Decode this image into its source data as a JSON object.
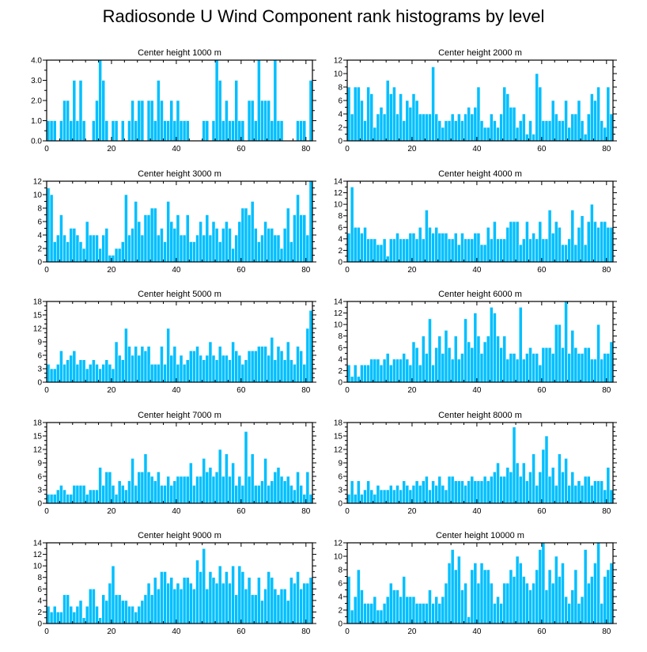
{
  "title": "Radiosonde U Wind Component rank histograms by level",
  "bar_color": "#00bfff",
  "bar_edge_color": "#ffffff",
  "chart_data": [
    {
      "type": "bar",
      "title": "Center height 1000 m",
      "xlim": [
        0,
        82
      ],
      "xticks": [
        0,
        20,
        40,
        60,
        80
      ],
      "ylim": [
        0,
        4
      ],
      "yticks": [
        0,
        1,
        2,
        3,
        4
      ],
      "yticklabels": [
        "0.0",
        "1.0",
        "2.0",
        "3.0",
        "4.0"
      ],
      "values": [
        1,
        1,
        1,
        0,
        1,
        2,
        2,
        1,
        3,
        1,
        3,
        1,
        0,
        0,
        1,
        2,
        4,
        3,
        1,
        0,
        1,
        1,
        0,
        1,
        0,
        1,
        2,
        1,
        2,
        2,
        0,
        2,
        2,
        1,
        3,
        2,
        1,
        1,
        2,
        1,
        2,
        1,
        1,
        1,
        0,
        0,
        0,
        0,
        1,
        1,
        0,
        1,
        4,
        3,
        1,
        2,
        1,
        1,
        3,
        1,
        1,
        0,
        2,
        2,
        1,
        4,
        2,
        2,
        2,
        1,
        4,
        1,
        1,
        0,
        0,
        0,
        0,
        1,
        1,
        1,
        0,
        3
      ]
    },
    {
      "type": "bar",
      "title": "Center height 2000 m",
      "xlim": [
        0,
        82
      ],
      "xticks": [
        0,
        20,
        40,
        60,
        80
      ],
      "ylim": [
        0,
        12
      ],
      "yticks": [
        0,
        2,
        4,
        6,
        8,
        10,
        12
      ],
      "yticklabels": [
        "0",
        "2",
        "4",
        "6",
        "8",
        "10",
        "12"
      ],
      "values": [
        8,
        4,
        8,
        8,
        6,
        3,
        8,
        7,
        2,
        4,
        5,
        4,
        9,
        7,
        8,
        4,
        7,
        3,
        6,
        5,
        7,
        6,
        4,
        4,
        4,
        4,
        11,
        4,
        3,
        2,
        3,
        3,
        4,
        3,
        4,
        3,
        4,
        5,
        4,
        5,
        8,
        3,
        2,
        2,
        4,
        3,
        2,
        4,
        8,
        7,
        5,
        5,
        2,
        3,
        4,
        1,
        3,
        1,
        10,
        8,
        3,
        3,
        3,
        6,
        4,
        3,
        3,
        6,
        2,
        4,
        4,
        6,
        3,
        1,
        4,
        7,
        6,
        8,
        3,
        2,
        8,
        4
      ]
    },
    {
      "type": "bar",
      "title": "Center height 3000 m",
      "xlim": [
        0,
        82
      ],
      "xticks": [
        0,
        20,
        40,
        60,
        80
      ],
      "ylim": [
        0,
        12
      ],
      "yticks": [
        0,
        2,
        4,
        6,
        8,
        10,
        12
      ],
      "yticklabels": [
        "0",
        "2",
        "4",
        "6",
        "8",
        "10",
        "12"
      ],
      "values": [
        11,
        10,
        3,
        4,
        7,
        4,
        3,
        5,
        5,
        4,
        3,
        2,
        6,
        4,
        4,
        4,
        2,
        4,
        5,
        1,
        1,
        2,
        2,
        3,
        10,
        4,
        5,
        9,
        6,
        4,
        7,
        7,
        8,
        8,
        4,
        5,
        3,
        9,
        6,
        5,
        7,
        4,
        4,
        7,
        3,
        3,
        4,
        6,
        4,
        7,
        4,
        6,
        5,
        3,
        5,
        6,
        5,
        2,
        4,
        6,
        8,
        8,
        7,
        9,
        5,
        3,
        4,
        6,
        5,
        5,
        4,
        4,
        2,
        5,
        8,
        3,
        7,
        10,
        7,
        7,
        4,
        12
      ]
    },
    {
      "type": "bar",
      "title": "Center height 4000 m",
      "xlim": [
        0,
        82
      ],
      "xticks": [
        0,
        20,
        40,
        60,
        80
      ],
      "ylim": [
        0,
        14
      ],
      "yticks": [
        0,
        2,
        4,
        6,
        8,
        10,
        12,
        14
      ],
      "yticklabels": [
        "0",
        "2",
        "4",
        "6",
        "8",
        "10",
        "12",
        "14"
      ],
      "values": [
        5,
        13,
        6,
        6,
        5,
        6,
        4,
        4,
        4,
        3,
        3,
        4,
        1,
        4,
        4,
        5,
        4,
        4,
        4,
        5,
        5,
        4,
        6,
        4,
        9,
        6,
        5,
        6,
        5,
        5,
        5,
        4,
        4,
        5,
        3,
        5,
        4,
        4,
        4,
        5,
        5,
        3,
        3,
        6,
        4,
        7,
        4,
        4,
        4,
        6,
        7,
        7,
        7,
        3,
        4,
        7,
        4,
        5,
        4,
        7,
        4,
        4,
        9,
        5,
        7,
        6,
        3,
        3,
        4,
        9,
        3,
        6,
        8,
        3,
        7,
        10,
        7,
        6,
        7,
        7,
        6,
        6
      ]
    },
    {
      "type": "bar",
      "title": "Center height 5000 m",
      "xlim": [
        0,
        82
      ],
      "xticks": [
        0,
        20,
        40,
        60,
        80
      ],
      "ylim": [
        0,
        18
      ],
      "yticks": [
        0,
        3,
        6,
        9,
        12,
        15,
        18
      ],
      "yticklabels": [
        "0",
        "3",
        "6",
        "9",
        "12",
        "15",
        "18"
      ],
      "values": [
        4,
        3,
        3,
        4,
        7,
        4,
        5,
        6,
        7,
        4,
        5,
        5,
        3,
        4,
        5,
        4,
        3,
        4,
        5,
        4,
        3,
        9,
        6,
        5,
        12,
        8,
        6,
        8,
        6,
        8,
        7,
        8,
        4,
        4,
        4,
        8,
        4,
        12,
        6,
        8,
        4,
        6,
        4,
        5,
        7,
        7,
        8,
        6,
        5,
        6,
        9,
        6,
        5,
        8,
        6,
        6,
        5,
        9,
        7,
        6,
        4,
        5,
        7,
        7,
        7,
        8,
        8,
        8,
        6,
        10,
        5,
        8,
        7,
        5,
        9,
        5,
        4,
        8,
        7,
        4,
        12,
        16
      ]
    },
    {
      "type": "bar",
      "title": "Center height 6000 m",
      "xlim": [
        0,
        82
      ],
      "xticks": [
        0,
        20,
        40,
        60,
        80
      ],
      "ylim": [
        0,
        14
      ],
      "yticks": [
        0,
        2,
        4,
        6,
        8,
        10,
        12,
        14
      ],
      "yticklabels": [
        "0",
        "2",
        "4",
        "6",
        "8",
        "10",
        "12",
        "14"
      ],
      "values": [
        3,
        1,
        3,
        1,
        3,
        3,
        3,
        4,
        4,
        4,
        3,
        4,
        5,
        3,
        4,
        4,
        4,
        5,
        4,
        3,
        7,
        6,
        3,
        8,
        5,
        11,
        3,
        6,
        8,
        5,
        9,
        6,
        4,
        8,
        4,
        5,
        11,
        7,
        6,
        12,
        8,
        5,
        7,
        8,
        13,
        12,
        8,
        6,
        8,
        4,
        5,
        5,
        4,
        13,
        4,
        5,
        6,
        5,
        5,
        3,
        6,
        6,
        6,
        5,
        10,
        10,
        6,
        14,
        5,
        9,
        6,
        5,
        5,
        6,
        6,
        4,
        4,
        10,
        4,
        5,
        5,
        7
      ]
    },
    {
      "type": "bar",
      "title": "Center height 7000 m",
      "xlim": [
        0,
        82
      ],
      "xticks": [
        0,
        20,
        40,
        60,
        80
      ],
      "ylim": [
        0,
        18
      ],
      "yticks": [
        0,
        3,
        6,
        9,
        12,
        15,
        18
      ],
      "yticklabels": [
        "0",
        "3",
        "6",
        "9",
        "12",
        "15",
        "18"
      ],
      "values": [
        2,
        2,
        2,
        3,
        4,
        3,
        2,
        2,
        4,
        4,
        4,
        4,
        2,
        3,
        3,
        3,
        8,
        4,
        7,
        7,
        4,
        2,
        5,
        4,
        3,
        5,
        10,
        4,
        7,
        7,
        11,
        7,
        6,
        5,
        7,
        4,
        4,
        6,
        4,
        5,
        6,
        6,
        6,
        6,
        9,
        4,
        6,
        6,
        10,
        7,
        8,
        6,
        7,
        12,
        6,
        11,
        6,
        9,
        4,
        6,
        4,
        16,
        6,
        11,
        4,
        4,
        5,
        10,
        4,
        5,
        7,
        8,
        6,
        5,
        6,
        4,
        3,
        7,
        4,
        2,
        7,
        2
      ]
    },
    {
      "type": "bar",
      "title": "Center height 8000 m",
      "xlim": [
        0,
        82
      ],
      "xticks": [
        0,
        20,
        40,
        60,
        80
      ],
      "ylim": [
        0,
        18
      ],
      "yticks": [
        0,
        3,
        6,
        9,
        12,
        15,
        18
      ],
      "yticklabels": [
        "0",
        "3",
        "6",
        "9",
        "12",
        "15",
        "18"
      ],
      "values": [
        2,
        5,
        2,
        5,
        2,
        3,
        5,
        3,
        2,
        4,
        3,
        3,
        3,
        4,
        3,
        4,
        3,
        5,
        4,
        3,
        4,
        5,
        4,
        5,
        6,
        3,
        5,
        4,
        6,
        4,
        3,
        6,
        6,
        5,
        5,
        5,
        4,
        5,
        6,
        5,
        5,
        5,
        6,
        5,
        6,
        7,
        9,
        6,
        6,
        8,
        7,
        17,
        9,
        6,
        9,
        5,
        7,
        11,
        4,
        7,
        12,
        15,
        6,
        8,
        4,
        11,
        7,
        10,
        4,
        7,
        4,
        5,
        4,
        6,
        6,
        4,
        5,
        5,
        5,
        3,
        8,
        3
      ]
    },
    {
      "type": "bar",
      "title": "Center height 9000 m",
      "xlim": [
        0,
        82
      ],
      "xticks": [
        0,
        20,
        40,
        60,
        80
      ],
      "ylim": [
        0,
        14
      ],
      "yticks": [
        0,
        2,
        4,
        6,
        8,
        10,
        12,
        14
      ],
      "yticklabels": [
        "0",
        "2",
        "4",
        "6",
        "8",
        "10",
        "12",
        "14"
      ],
      "values": [
        3,
        2,
        3,
        2,
        2,
        5,
        5,
        3,
        2,
        3,
        4,
        1,
        3,
        6,
        6,
        3,
        1,
        5,
        4,
        7,
        10,
        5,
        5,
        4,
        4,
        3,
        3,
        2,
        3,
        4,
        5,
        7,
        5,
        8,
        6,
        9,
        9,
        7,
        8,
        6,
        7,
        6,
        8,
        8,
        7,
        6,
        11,
        9,
        13,
        6,
        9,
        8,
        7,
        10,
        7,
        9,
        7,
        10,
        5,
        10,
        9,
        6,
        8,
        5,
        5,
        8,
        4,
        6,
        9,
        8,
        6,
        5,
        6,
        6,
        4,
        8,
        7,
        9,
        6,
        7,
        7,
        8
      ]
    },
    {
      "type": "bar",
      "title": "Center height 10000 m",
      "xlim": [
        0,
        82
      ],
      "xticks": [
        0,
        20,
        40,
        60,
        80
      ],
      "ylim": [
        0,
        12
      ],
      "yticks": [
        0,
        2,
        4,
        6,
        8,
        10,
        12
      ],
      "yticklabels": [
        "0",
        "2",
        "4",
        "6",
        "8",
        "10",
        "12"
      ],
      "values": [
        7,
        2,
        4,
        8,
        5,
        3,
        3,
        3,
        4,
        2,
        2,
        3,
        4,
        6,
        5,
        5,
        4,
        7,
        4,
        4,
        4,
        3,
        3,
        3,
        3,
        5,
        3,
        4,
        3,
        4,
        6,
        9,
        11,
        8,
        10,
        5,
        6,
        1,
        8,
        9,
        6,
        9,
        8,
        8,
        6,
        3,
        4,
        3,
        6,
        6,
        8,
        7,
        10,
        9,
        7,
        6,
        5,
        6,
        8,
        11,
        12,
        5,
        8,
        6,
        10,
        7,
        9,
        4,
        3,
        5,
        8,
        3,
        4,
        11,
        6,
        7,
        9,
        12,
        3,
        7,
        8,
        9
      ]
    }
  ]
}
